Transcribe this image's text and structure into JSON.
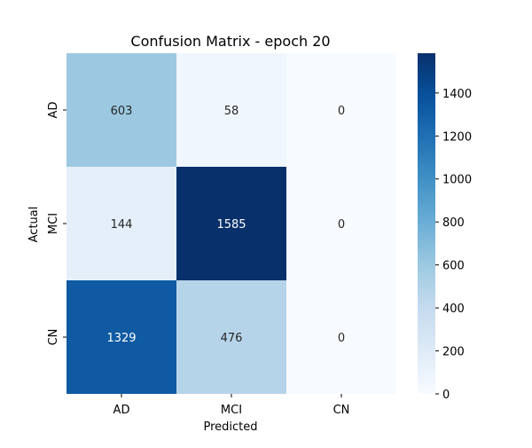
{
  "chart_data": {
    "type": "heatmap",
    "title": "Confusion Matrix - epoch 20",
    "xlabel": "Predicted",
    "ylabel": "Actual",
    "x_categories": [
      "AD",
      "MCI",
      "CN"
    ],
    "y_categories": [
      "AD",
      "MCI",
      "CN"
    ],
    "values": [
      [
        603,
        58,
        0
      ],
      [
        144,
        1585,
        0
      ],
      [
        1329,
        476,
        0
      ]
    ],
    "colormap": "Blues",
    "colormap_stops": [
      "#f7fbff",
      "#deebf7",
      "#c6dbef",
      "#9ecae1",
      "#6baed6",
      "#4292c6",
      "#2171b5",
      "#08519c",
      "#08306b"
    ],
    "color_range": [
      0,
      1585
    ],
    "colorbar_ticks": [
      0,
      200,
      400,
      600,
      800,
      1000,
      1200,
      1400
    ],
    "annot_dark_text": "#262626",
    "annot_light_text": "#ffffff"
  }
}
